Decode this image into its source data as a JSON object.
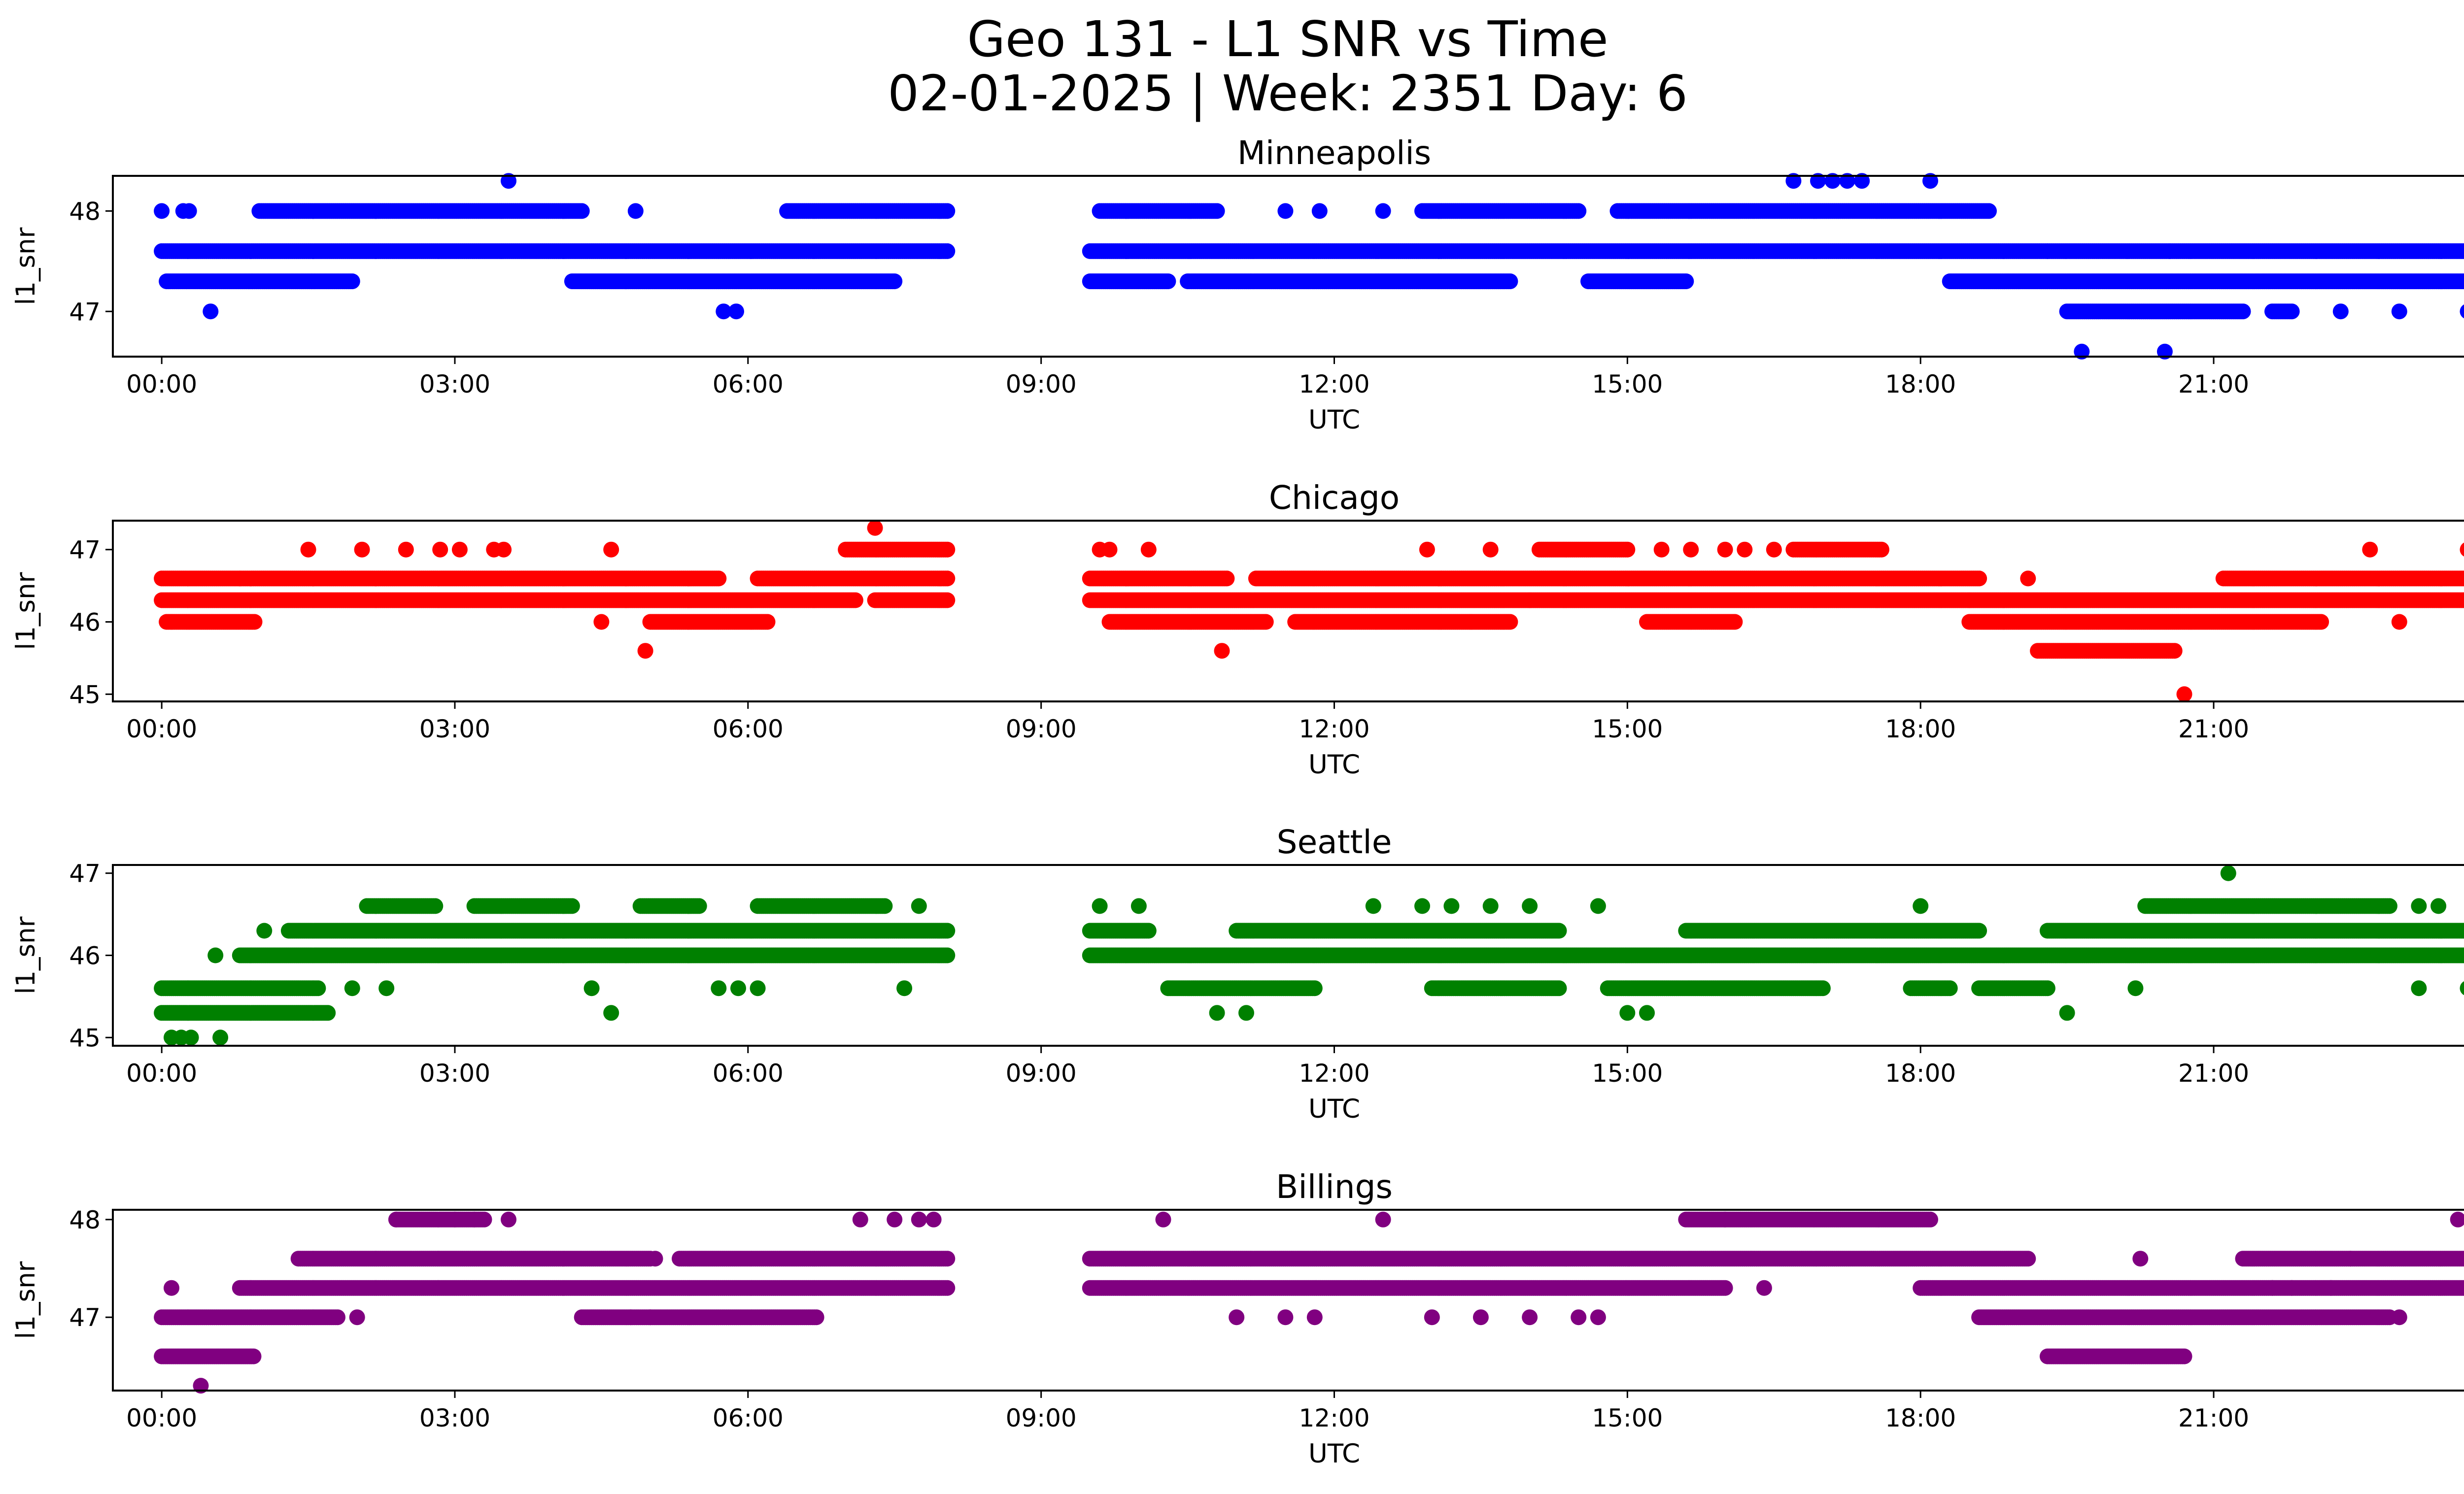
{
  "figure": {
    "title_line1": "Geo 131 - L1 SNR vs Time",
    "title_line2": "02-01-2025 | Week: 2351 Day: 6"
  },
  "chart_data": [
    {
      "type": "scatter",
      "title": "Minneapolis",
      "color": "#0000ff",
      "xlabel": "UTC",
      "ylabel": "l1_snr",
      "xlim": [
        -0.5,
        24.5
      ],
      "ylim": [
        46.55,
        48.35
      ],
      "yticks": [
        47,
        48
      ],
      "xtick_labels": [
        "00:00",
        "03:00",
        "06:00",
        "09:00",
        "12:00",
        "15:00",
        "18:00",
        "21:00",
        "00:00"
      ],
      "x_range_hours": [
        0,
        24
      ],
      "bands": [
        {
          "y": 47.6,
          "segments": [
            [
              0.0,
              8.05
            ],
            [
              9.5,
              19.3
            ],
            [
              19.3,
              24.0
            ]
          ]
        },
        {
          "y": 47.3,
          "segments": [
            [
              0.05,
              1.95
            ],
            [
              4.2,
              7.5
            ],
            [
              9.5,
              10.3
            ],
            [
              10.5,
              13.8
            ],
            [
              14.6,
              15.6
            ],
            [
              18.3,
              24.0
            ]
          ]
        },
        {
          "y": 48.0,
          "segments": [
            [
              1.0,
              4.3
            ],
            [
              6.4,
              8.05
            ],
            [
              9.6,
              10.8
            ],
            [
              12.9,
              14.5
            ],
            [
              14.9,
              18.7
            ]
          ]
        },
        {
          "y": 47.0,
          "segments": [
            [
              19.5,
              21.3
            ],
            [
              21.6,
              21.8
            ]
          ]
        }
      ],
      "points": [
        {
          "x": 0.0,
          "y": 48.0
        },
        {
          "x": 0.22,
          "y": 48.0
        },
        {
          "x": 0.28,
          "y": 48.0
        },
        {
          "x": 4.85,
          "y": 48.0
        },
        {
          "x": 11.5,
          "y": 48.0
        },
        {
          "x": 11.85,
          "y": 48.0
        },
        {
          "x": 12.5,
          "y": 48.0
        },
        {
          "x": 3.55,
          "y": 48.3
        },
        {
          "x": 16.7,
          "y": 48.3
        },
        {
          "x": 16.95,
          "y": 48.3
        },
        {
          "x": 17.1,
          "y": 48.3
        },
        {
          "x": 17.25,
          "y": 48.3
        },
        {
          "x": 17.4,
          "y": 48.3
        },
        {
          "x": 18.1,
          "y": 48.3
        },
        {
          "x": 0.5,
          "y": 47.0
        },
        {
          "x": 5.75,
          "y": 47.0
        },
        {
          "x": 5.88,
          "y": 47.0
        },
        {
          "x": 22.3,
          "y": 47.0
        },
        {
          "x": 22.9,
          "y": 47.0
        },
        {
          "x": 23.6,
          "y": 47.0
        },
        {
          "x": 23.7,
          "y": 47.0
        },
        {
          "x": 19.65,
          "y": 46.6
        },
        {
          "x": 20.5,
          "y": 46.6
        },
        {
          "x": 20.55,
          "y": 47.6
        },
        {
          "x": 24.0,
          "y": 47.6
        }
      ]
    },
    {
      "type": "scatter",
      "title": "Chicago",
      "color": "#ff0000",
      "xlabel": "UTC",
      "ylabel": "l1_snr",
      "xlim": [
        -0.5,
        24.5
      ],
      "ylim": [
        44.9,
        47.4
      ],
      "yticks": [
        45,
        46,
        47
      ],
      "xtick_labels": [
        "00:00",
        "03:00",
        "06:00",
        "09:00",
        "12:00",
        "15:00",
        "18:00",
        "21:00",
        "00:00"
      ],
      "x_range_hours": [
        0,
        24
      ],
      "bands": [
        {
          "y": 46.6,
          "segments": [
            [
              0.0,
              0.8
            ],
            [
              0.8,
              5.7
            ],
            [
              6.1,
              8.05
            ],
            [
              9.5,
              10.9
            ],
            [
              11.2,
              18.6
            ],
            [
              21.1,
              24.0
            ]
          ]
        },
        {
          "y": 46.3,
          "segments": [
            [
              0.0,
              7.1
            ],
            [
              7.3,
              8.05
            ],
            [
              9.5,
              18.5
            ],
            [
              18.5,
              24.0
            ]
          ]
        },
        {
          "y": 46.0,
          "segments": [
            [
              0.05,
              0.95
            ],
            [
              5.0,
              6.2
            ],
            [
              9.7,
              11.3
            ],
            [
              11.6,
              13.8
            ],
            [
              15.2,
              16.1
            ],
            [
              18.5,
              22.1
            ]
          ]
        },
        {
          "y": 47.0,
          "segments": [
            [
              7.0,
              8.05
            ],
            [
              14.1,
              15.0
            ],
            [
              16.7,
              17.6
            ]
          ]
        },
        {
          "y": 45.6,
          "segments": [
            [
              19.2,
              20.6
            ]
          ]
        }
      ],
      "points": [
        {
          "x": 0.1,
          "y": 46.0
        },
        {
          "x": 1.5,
          "y": 47.0
        },
        {
          "x": 2.05,
          "y": 47.0
        },
        {
          "x": 2.5,
          "y": 47.0
        },
        {
          "x": 2.85,
          "y": 47.0
        },
        {
          "x": 3.05,
          "y": 47.0
        },
        {
          "x": 3.4,
          "y": 47.0
        },
        {
          "x": 3.5,
          "y": 47.0
        },
        {
          "x": 4.6,
          "y": 47.0
        },
        {
          "x": 7.3,
          "y": 47.3
        },
        {
          "x": 4.95,
          "y": 45.6
        },
        {
          "x": 10.85,
          "y": 45.6
        },
        {
          "x": 9.6,
          "y": 47.0
        },
        {
          "x": 9.7,
          "y": 47.0
        },
        {
          "x": 10.1,
          "y": 47.0
        },
        {
          "x": 12.95,
          "y": 47.0
        },
        {
          "x": 13.6,
          "y": 47.0
        },
        {
          "x": 16.0,
          "y": 47.0
        },
        {
          "x": 16.2,
          "y": 47.0
        },
        {
          "x": 16.5,
          "y": 47.0
        },
        {
          "x": 15.35,
          "y": 47.0
        },
        {
          "x": 15.65,
          "y": 47.0
        },
        {
          "x": 19.1,
          "y": 46.6
        },
        {
          "x": 20.7,
          "y": 45.0
        },
        {
          "x": 22.6,
          "y": 47.0
        },
        {
          "x": 23.6,
          "y": 47.0
        },
        {
          "x": 4.5,
          "y": 46.0
        },
        {
          "x": 13.4,
          "y": 46.0
        },
        {
          "x": 14.0,
          "y": 46.3
        },
        {
          "x": 22.9,
          "y": 46.0
        }
      ]
    },
    {
      "type": "scatter",
      "title": "Seattle",
      "color": "#008000",
      "xlabel": "UTC",
      "ylabel": "l1_snr",
      "xlim": [
        -0.5,
        24.5
      ],
      "ylim": [
        44.9,
        47.1
      ],
      "yticks": [
        45,
        46,
        47
      ],
      "xtick_labels": [
        "00:00",
        "03:00",
        "06:00",
        "09:00",
        "12:00",
        "15:00",
        "18:00",
        "21:00",
        "00:00"
      ],
      "x_range_hours": [
        0,
        24
      ],
      "bands": [
        {
          "y": 46.0,
          "segments": [
            [
              0.8,
              8.05
            ],
            [
              9.5,
              24.0
            ]
          ]
        },
        {
          "y": 46.3,
          "segments": [
            [
              1.3,
              8.05
            ],
            [
              9.5,
              10.1
            ],
            [
              11.0,
              14.3
            ],
            [
              15.6,
              18.6
            ],
            [
              19.3,
              24.0
            ]
          ]
        },
        {
          "y": 45.6,
          "segments": [
            [
              0.0,
              1.6
            ],
            [
              10.3,
              11.8
            ],
            [
              13.0,
              14.3
            ],
            [
              14.8,
              17.0
            ],
            [
              17.9,
              18.3
            ],
            [
              18.6,
              19.3
            ]
          ]
        },
        {
          "y": 45.3,
          "segments": [
            [
              0.0,
              1.7
            ]
          ]
        },
        {
          "y": 46.6,
          "segments": [
            [
              2.1,
              2.8
            ],
            [
              3.2,
              4.2
            ],
            [
              4.9,
              5.5
            ],
            [
              6.1,
              7.4
            ],
            [
              20.3,
              22.8
            ]
          ]
        }
      ],
      "points": [
        {
          "x": 0.1,
          "y": 45.0
        },
        {
          "x": 0.2,
          "y": 45.0
        },
        {
          "x": 0.3,
          "y": 45.0
        },
        {
          "x": 0.6,
          "y": 45.0
        },
        {
          "x": 0.55,
          "y": 46.0
        },
        {
          "x": 1.05,
          "y": 46.3
        },
        {
          "x": 1.95,
          "y": 45.6
        },
        {
          "x": 2.3,
          "y": 45.6
        },
        {
          "x": 4.4,
          "y": 45.6
        },
        {
          "x": 4.6,
          "y": 45.3
        },
        {
          "x": 5.7,
          "y": 45.6
        },
        {
          "x": 5.9,
          "y": 45.6
        },
        {
          "x": 6.1,
          "y": 45.6
        },
        {
          "x": 7.6,
          "y": 45.6
        },
        {
          "x": 7.75,
          "y": 46.6
        },
        {
          "x": 10.8,
          "y": 45.3
        },
        {
          "x": 11.1,
          "y": 45.3
        },
        {
          "x": 9.6,
          "y": 46.6
        },
        {
          "x": 10.0,
          "y": 46.6
        },
        {
          "x": 12.4,
          "y": 46.6
        },
        {
          "x": 12.9,
          "y": 46.6
        },
        {
          "x": 13.2,
          "y": 46.6
        },
        {
          "x": 13.6,
          "y": 46.6
        },
        {
          "x": 14.0,
          "y": 46.6
        },
        {
          "x": 14.7,
          "y": 46.6
        },
        {
          "x": 15.0,
          "y": 45.3
        },
        {
          "x": 15.2,
          "y": 45.3
        },
        {
          "x": 18.0,
          "y": 46.6
        },
        {
          "x": 19.5,
          "y": 45.3
        },
        {
          "x": 20.2,
          "y": 45.6
        },
        {
          "x": 21.15,
          "y": 47.0
        },
        {
          "x": 23.1,
          "y": 46.6
        },
        {
          "x": 23.3,
          "y": 46.6
        },
        {
          "x": 23.1,
          "y": 45.6
        },
        {
          "x": 23.6,
          "y": 45.6
        },
        {
          "x": 24.0,
          "y": 45.6
        }
      ]
    },
    {
      "type": "scatter",
      "title": "Billings",
      "color": "#800080",
      "xlabel": "UTC",
      "ylabel": "l1_snr",
      "xlim": [
        -0.5,
        24.5
      ],
      "ylim": [
        46.25,
        48.1
      ],
      "yticks": [
        47,
        48
      ],
      "xtick_labels": [
        "00:00",
        "03:00",
        "06:00",
        "09:00",
        "12:00",
        "15:00",
        "18:00",
        "21:00",
        "00:00"
      ],
      "x_range_hours": [
        0,
        24
      ],
      "bands": [
        {
          "y": 47.6,
          "segments": [
            [
              1.4,
              5.0
            ],
            [
              5.3,
              8.05
            ],
            [
              9.5,
              19.1
            ],
            [
              21.3,
              24.0
            ]
          ]
        },
        {
          "y": 47.3,
          "segments": [
            [
              0.8,
              8.05
            ],
            [
              9.5,
              16.0
            ],
            [
              18.0,
              24.0
            ]
          ]
        },
        {
          "y": 47.0,
          "segments": [
            [
              0.0,
              1.8
            ],
            [
              4.3,
              6.7
            ],
            [
              18.6,
              22.8
            ]
          ]
        },
        {
          "y": 46.6,
          "segments": [
            [
              0.0,
              0.95
            ],
            [
              19.3,
              20.7
            ]
          ]
        },
        {
          "y": 48.0,
          "segments": [
            [
              2.4,
              3.3
            ],
            [
              15.6,
              18.1
            ]
          ]
        }
      ],
      "points": [
        {
          "x": 0.1,
          "y": 47.3
        },
        {
          "x": 0.4,
          "y": 46.3
        },
        {
          "x": 2.0,
          "y": 47.0
        },
        {
          "x": 2.4,
          "y": 48.0
        },
        {
          "x": 3.0,
          "y": 48.0
        },
        {
          "x": 3.2,
          "y": 48.0
        },
        {
          "x": 3.55,
          "y": 48.0
        },
        {
          "x": 4.8,
          "y": 47.0
        },
        {
          "x": 5.0,
          "y": 47.0
        },
        {
          "x": 5.05,
          "y": 47.6
        },
        {
          "x": 7.15,
          "y": 48.0
        },
        {
          "x": 7.5,
          "y": 48.0
        },
        {
          "x": 7.75,
          "y": 48.0
        },
        {
          "x": 7.9,
          "y": 48.0
        },
        {
          "x": 10.25,
          "y": 48.0
        },
        {
          "x": 11.0,
          "y": 47.0
        },
        {
          "x": 11.5,
          "y": 47.0
        },
        {
          "x": 11.8,
          "y": 47.0
        },
        {
          "x": 12.5,
          "y": 48.0
        },
        {
          "x": 13.0,
          "y": 47.0
        },
        {
          "x": 13.5,
          "y": 47.0
        },
        {
          "x": 14.0,
          "y": 47.0
        },
        {
          "x": 14.5,
          "y": 47.0
        },
        {
          "x": 14.7,
          "y": 47.0
        },
        {
          "x": 16.0,
          "y": 48.0
        },
        {
          "x": 16.4,
          "y": 47.3
        },
        {
          "x": 20.25,
          "y": 47.6
        },
        {
          "x": 21.6,
          "y": 47.3
        },
        {
          "x": 21.8,
          "y": 47.3
        },
        {
          "x": 22.2,
          "y": 47.3
        },
        {
          "x": 22.9,
          "y": 47.0
        },
        {
          "x": 23.5,
          "y": 48.0
        },
        {
          "x": 23.7,
          "y": 48.0
        },
        {
          "x": 22.4,
          "y": 47.6
        }
      ]
    }
  ]
}
